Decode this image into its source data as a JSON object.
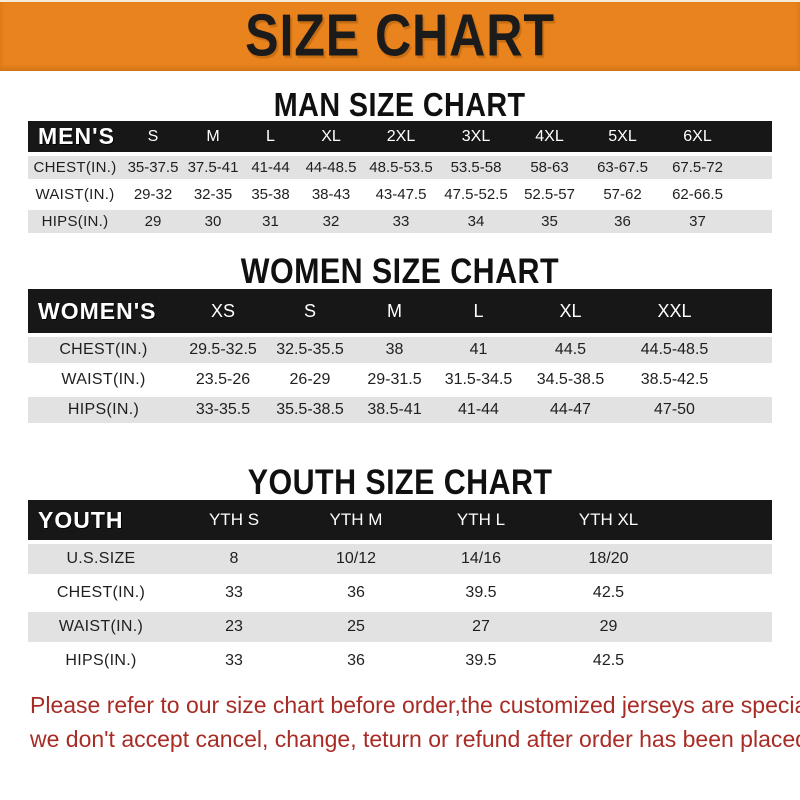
{
  "banner": {
    "title": "SIZE CHART"
  },
  "chart_data": [
    {
      "type": "table",
      "title": "MAN SIZE CHART",
      "label": "MEN'S",
      "columns": [
        "S",
        "M",
        "L",
        "XL",
        "2XL",
        "3XL",
        "4XL",
        "5XL",
        "6XL"
      ],
      "rows": [
        {
          "label": "CHEST(IN.)",
          "values": [
            "35-37.5",
            "37.5-41",
            "41-44",
            "44-48.5",
            "48.5-53.5",
            "53.5-58",
            "58-63",
            "63-67.5",
            "67.5-72"
          ]
        },
        {
          "label": "WAIST(IN.)",
          "values": [
            "29-32",
            "32-35",
            "35-38",
            "38-43",
            "43-47.5",
            "47.5-52.5",
            "52.5-57",
            "57-62",
            "62-66.5"
          ]
        },
        {
          "label": "HIPS(IN.)",
          "values": [
            "29",
            "30",
            "31",
            "32",
            "33",
            "34",
            "35",
            "36",
            "37"
          ]
        }
      ]
    },
    {
      "type": "table",
      "title": "WOMEN SIZE CHART",
      "label": "WOMEN'S",
      "columns": [
        "XS",
        "S",
        "M",
        "L",
        "XL",
        "XXL"
      ],
      "rows": [
        {
          "label": "CHEST(IN.)",
          "values": [
            "29.5-32.5",
            "32.5-35.5",
            "38",
            "41",
            "44.5",
            "44.5-48.5"
          ]
        },
        {
          "label": "WAIST(IN.)",
          "values": [
            "23.5-26",
            "26-29",
            "29-31.5",
            "31.5-34.5",
            "34.5-38.5",
            "38.5-42.5"
          ]
        },
        {
          "label": "HIPS(IN.)",
          "values": [
            "33-35.5",
            "35.5-38.5",
            "38.5-41",
            "41-44",
            "44-47",
            "47-50"
          ]
        }
      ]
    },
    {
      "type": "table",
      "title": "YOUTH SIZE CHART",
      "label": "YOUTH",
      "columns": [
        "YTH S",
        "YTH M",
        "YTH L",
        "YTH XL"
      ],
      "rows": [
        {
          "label": "U.S.SIZE",
          "values": [
            "8",
            "10/12",
            "14/16",
            "18/20"
          ]
        },
        {
          "label": "CHEST(IN.)",
          "values": [
            "33",
            "36",
            "39.5",
            "42.5"
          ]
        },
        {
          "label": "WAIST(IN.)",
          "values": [
            "23",
            "25",
            "27",
            "29"
          ]
        },
        {
          "label": "HIPS(IN.)",
          "values": [
            "33",
            "36",
            "39.5",
            "42.5"
          ]
        }
      ]
    }
  ],
  "footer": {
    "line1": "Please refer to our size chart before order,the customized jerseys are special products,",
    "line2": "we don't accept cancel, change, teturn or refund after order has been placed!"
  },
  "colors": {
    "banner_orange": "#E8831D",
    "table_header_black": "#171717",
    "row_gray": "#E2E2E2",
    "footer_red": "#A82C26"
  }
}
